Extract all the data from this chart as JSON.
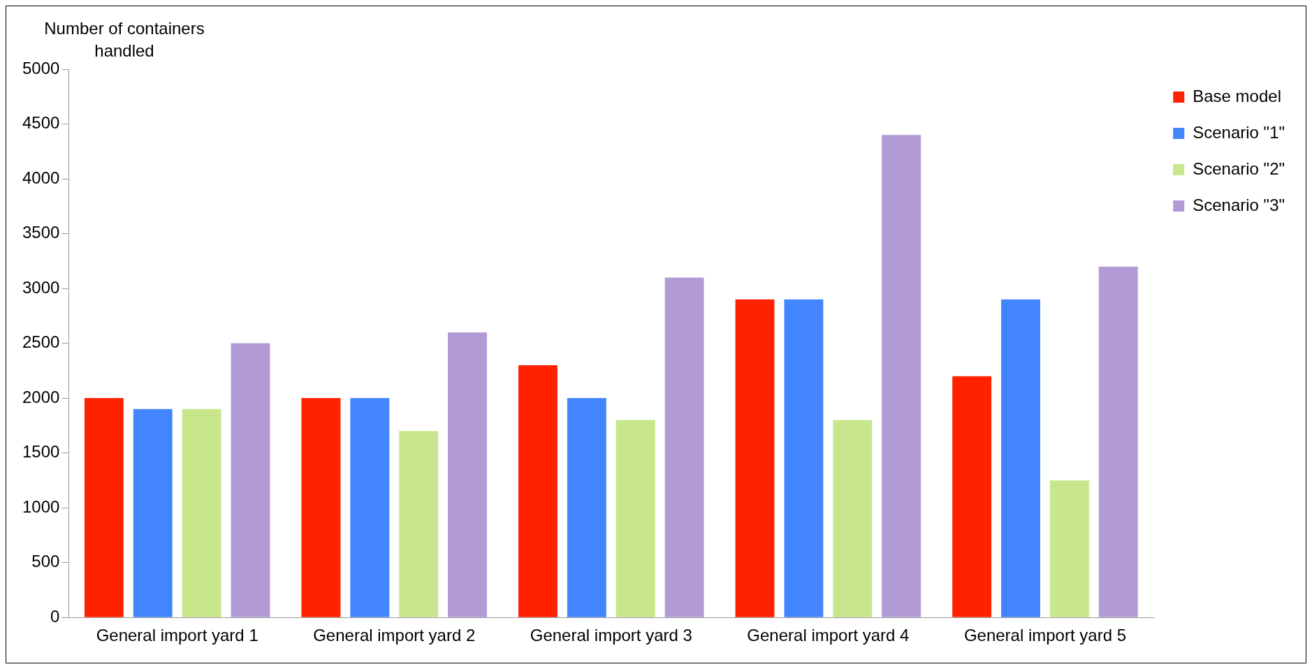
{
  "chart_data": {
    "type": "bar",
    "ylabel": "Number of containers handled",
    "categories": [
      "General import yard 1",
      "General import yard 2",
      "General import yard 3",
      "General import yard 4",
      "General import yard 5"
    ],
    "series": [
      {
        "name": "Base model",
        "color": "#ff2200",
        "values": [
          2000,
          2000,
          2300,
          2900,
          2200
        ]
      },
      {
        "name": "Scenario \"1\"",
        "color": "#4285ff",
        "values": [
          1900,
          2000,
          2000,
          2900,
          2900
        ]
      },
      {
        "name": "Scenario \"2\"",
        "color": "#c8e68c",
        "values": [
          1900,
          1700,
          1800,
          1800,
          1250
        ]
      },
      {
        "name": "Scenario \"3\"",
        "color": "#b29ad6",
        "values": [
          2500,
          2600,
          3100,
          4400,
          3200
        ]
      }
    ],
    "ylim": [
      0,
      5000
    ],
    "yticks": [
      0,
      500,
      1000,
      1500,
      2000,
      2500,
      3000,
      3500,
      4000,
      4500,
      5000
    ],
    "grid": false,
    "legend": "top right"
  }
}
